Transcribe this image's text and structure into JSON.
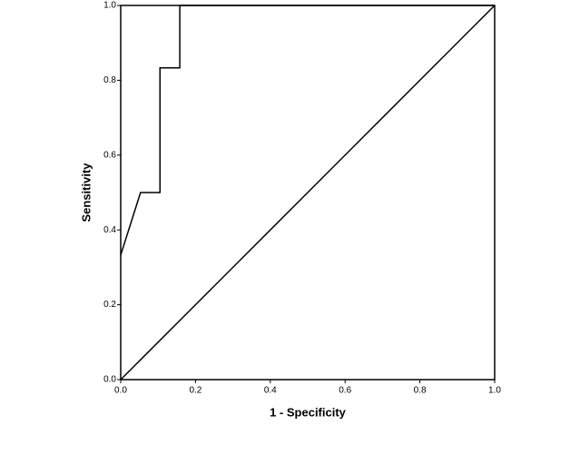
{
  "chart_data": {
    "type": "line",
    "xlabel": "1 - Specificity",
    "ylabel": "Sensitivity",
    "xlim": [
      0,
      1
    ],
    "ylim": [
      0,
      1
    ],
    "xticks": [
      {
        "value": 0,
        "label": "0.0"
      },
      0.2,
      0.4,
      0.6,
      0.8,
      {
        "value": 1,
        "label": "1.0"
      }
    ],
    "yticks": [
      {
        "value": 0,
        "label": "0.0"
      },
      0.2,
      0.4,
      0.6,
      0.8,
      {
        "value": 1,
        "label": "1.0"
      }
    ],
    "series": [
      {
        "color": "#000000",
        "x": [
          0,
          0.053,
          0.105,
          0.105,
          0.158,
          0.158,
          1
        ],
        "values": [
          0.333,
          0.5,
          0.5,
          0.833,
          0.833,
          1,
          1
        ]
      },
      {
        "color": "#000000",
        "x": [
          0,
          1
        ],
        "values": [
          0,
          1
        ]
      }
    ]
  }
}
